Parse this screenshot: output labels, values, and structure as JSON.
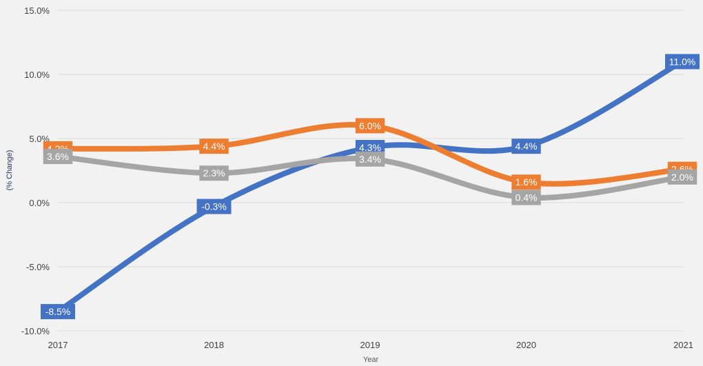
{
  "chart_data": {
    "type": "line",
    "title": "",
    "xlabel": "Year",
    "ylabel": "(% Change)",
    "x": [
      "2017",
      "2018",
      "2019",
      "2020",
      "2021"
    ],
    "ylim": [
      -10,
      15
    ],
    "yticks": [
      -10,
      -5,
      0,
      5,
      10,
      15
    ],
    "ytick_labels": [
      "-10.0%",
      "-5.0%",
      "0.0%",
      "5.0%",
      "10.0%",
      "15.0%"
    ],
    "grid": true,
    "legend": "none",
    "series": [
      {
        "values": [
          -8.5,
          -0.3,
          4.3,
          4.4,
          11.0
        ],
        "labels": [
          "-8.5%",
          "-0.3%",
          "4.3%",
          "4.4%",
          "11.0%"
        ],
        "color": "#4472c4"
      },
      {
        "values": [
          4.2,
          4.4,
          6.0,
          1.6,
          2.6
        ],
        "labels": [
          "4.2%",
          "4.4%",
          "6.0%",
          "1.6%",
          "2.6%"
        ],
        "color": "#ed7d31"
      },
      {
        "values": [
          3.6,
          2.3,
          3.4,
          0.4,
          2.0
        ],
        "labels": [
          "3.6%",
          "2.3%",
          "3.4%",
          "0.4%",
          "2.0%"
        ],
        "color": "#a5a5a5"
      }
    ]
  }
}
